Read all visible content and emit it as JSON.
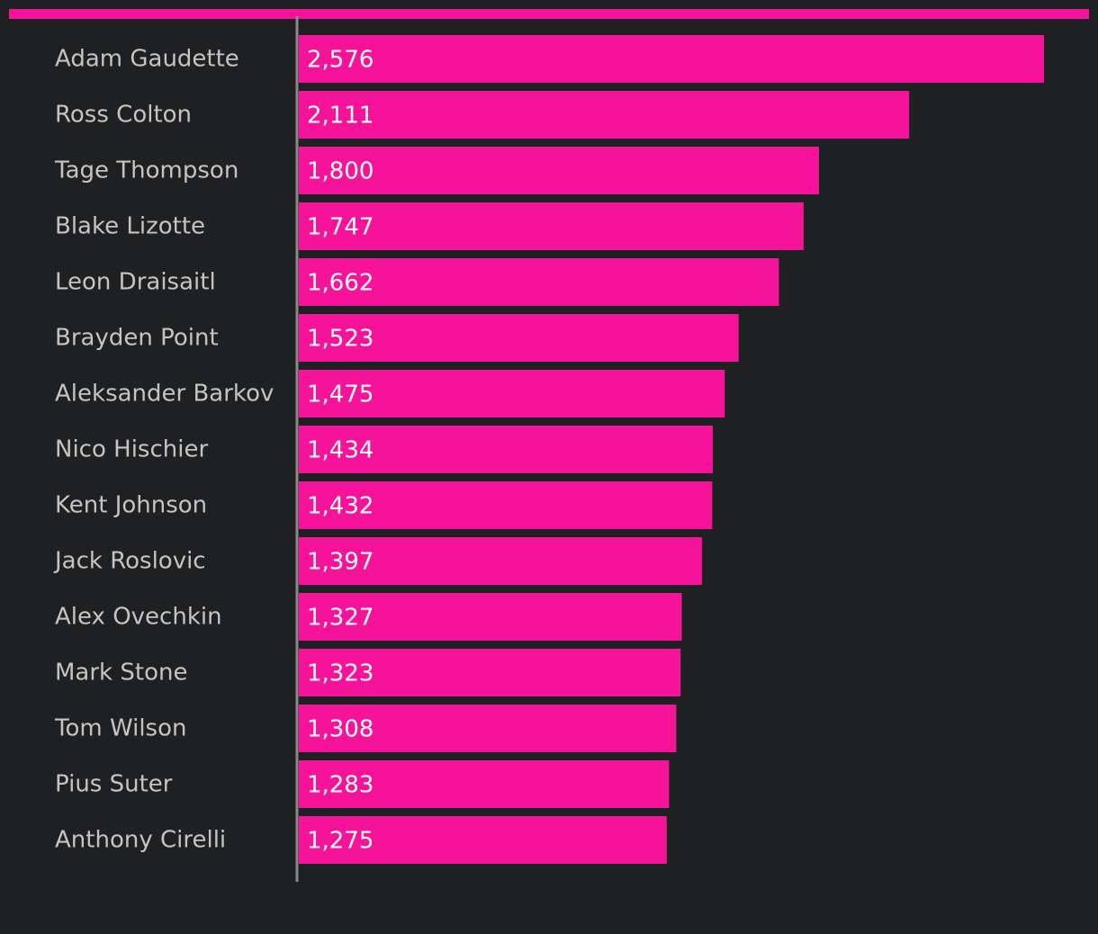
{
  "colors": {
    "background": "#1f2022",
    "bar": "#f5139a",
    "accent_rule": "#f5139a",
    "axis": "#8a8a8a",
    "label_text": "#c4c4c4",
    "value_text": "#ffffff"
  },
  "chart_data": {
    "type": "bar",
    "orientation": "horizontal",
    "title": "",
    "xlabel": "",
    "ylabel": "",
    "xlim": [
      0,
      2576
    ],
    "grid": false,
    "categories": [
      "Adam Gaudette",
      "Ross Colton",
      "Tage Thompson",
      "Blake Lizotte",
      "Leon Draisaitl",
      "Brayden Point",
      "Aleksander Barkov",
      "Nico Hischier",
      "Kent Johnson",
      "Jack Roslovic",
      "Alex Ovechkin",
      "Mark Stone",
      "Tom Wilson",
      "Pius Suter",
      "Anthony Cirelli"
    ],
    "values": [
      2576,
      2111,
      1800,
      1747,
      1662,
      1523,
      1475,
      1434,
      1432,
      1397,
      1327,
      1323,
      1308,
      1283,
      1275
    ],
    "value_labels": [
      "2,576",
      "2,111",
      "1,800",
      "1,747",
      "1,662",
      "1,523",
      "1,475",
      "1,434",
      "1,432",
      "1,397",
      "1,327",
      "1,323",
      "1,308",
      "1,283",
      "1,275"
    ]
  }
}
